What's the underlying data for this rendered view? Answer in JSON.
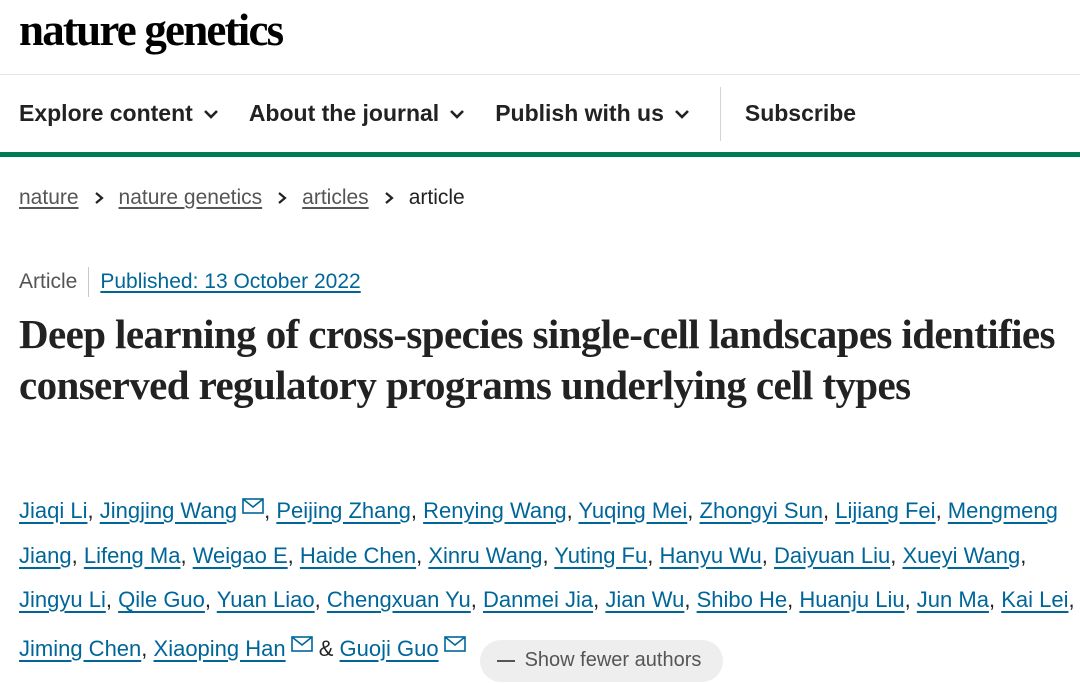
{
  "journal": {
    "name": "nature genetics"
  },
  "nav": {
    "items": [
      {
        "label": "Explore content",
        "has_menu": true
      },
      {
        "label": "About the journal",
        "has_menu": true
      },
      {
        "label": "Publish with us",
        "has_menu": true
      }
    ],
    "subscribe_label": "Subscribe"
  },
  "breadcrumb": {
    "items": [
      "nature",
      "nature genetics",
      "articles"
    ],
    "current": "article"
  },
  "article": {
    "type": "Article",
    "published": "Published: 13 October 2022",
    "title": "Deep learning of cross-species single-cell landscapes identifies conserved regulatory programs underlying cell types"
  },
  "authors": {
    "list": [
      "Jiaqi Li",
      "Jingjing Wang",
      "Peijing Zhang",
      "Renying Wang",
      "Yuqing Mei",
      "Zhongyi Sun",
      "Lijiang Fei",
      "Mengmeng Jiang",
      "Lifeng Ma",
      "Weigao E",
      "Haide Chen",
      "Xinru Wang",
      "Yuting Fu",
      "Hanyu Wu",
      "Daiyuan Liu",
      "Xueyi Wang",
      "Jingyu Li",
      "Qile Guo",
      "Yuan Liao",
      "Chengxuan Yu",
      "Danmei Jia",
      "Jian Wu",
      "Shibo He",
      "Huanju Liu",
      "Jun Ma",
      "Kai Lei",
      "Jiming Chen",
      "Xiaoping Han",
      "Guoji Guo"
    ],
    "sep": ", ",
    "last_sep": " & ",
    "show_fewer_label": "Show fewer authors"
  },
  "colors": {
    "brand_green": "#007b57",
    "link": "#006699",
    "text": "#222222"
  }
}
